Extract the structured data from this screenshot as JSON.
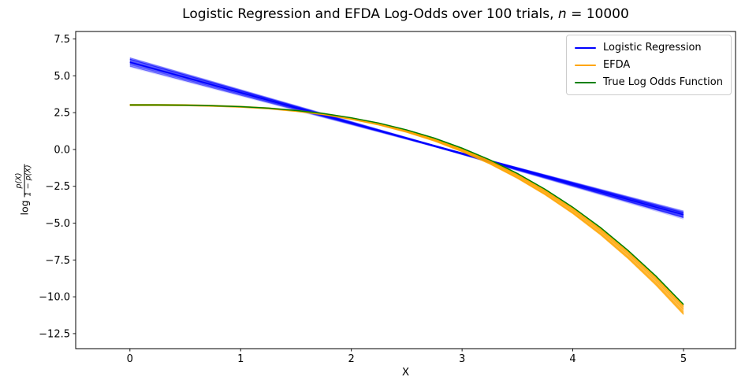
{
  "figure": {
    "title_prefix": "Logistic Regression and EFDA Log-Odds over 100 trials, ",
    "title_math_var": "n",
    "title_math_rest": " = 10000"
  },
  "chart_data": {
    "type": "line",
    "title": "Logistic Regression and EFDA Log-Odds over 100 trials, n = 10000",
    "trials": 100,
    "n": 10000,
    "xlabel": "X",
    "ylabel": "log p(X) / (1 − p(X))",
    "ylabel_parts": {
      "func": "log",
      "numerator": "p(X)",
      "denominator": "1 − p(X)"
    },
    "xlim": [
      -0.49,
      5.47
    ],
    "ylim": [
      -13.52,
      8.01
    ],
    "xticks": [
      0,
      1,
      2,
      3,
      4,
      5
    ],
    "yticks": [
      7.5,
      5.0,
      2.5,
      0.0,
      -2.5,
      -5.0,
      -7.5,
      -10.0,
      -12.5
    ],
    "grid": false,
    "legend_position": "upper right",
    "legend": [
      {
        "label": "Logistic Regression",
        "color": "#0000ff"
      },
      {
        "label": "EFDA",
        "color": "#ffa500"
      },
      {
        "label": "True Log Odds Function",
        "color": "#008000"
      }
    ],
    "series": [
      {
        "name": "Logistic Regression",
        "color": "#0000ff",
        "style": "ensemble of straight fits",
        "x": [
          0,
          5
        ],
        "y_mean": [
          5.93,
          -4.43
        ],
        "y_spread": [
          0.37,
          0.3
        ]
      },
      {
        "name": "EFDA",
        "color": "#ffa500",
        "style": "ensemble of curves",
        "x": [
          0,
          0.25,
          0.5,
          0.75,
          1,
          1.25,
          1.5,
          1.75,
          2,
          2.25,
          2.5,
          2.75,
          3,
          3.25,
          3.5,
          3.75,
          4,
          4.25,
          4.5,
          4.75,
          5
        ],
        "y_mean": [
          3.02,
          3.02,
          3.0,
          2.97,
          2.9,
          2.79,
          2.62,
          2.4,
          2.1,
          1.71,
          1.24,
          0.66,
          -0.03,
          -0.85,
          -1.8,
          -2.89,
          -4.14,
          -5.55,
          -7.14,
          -8.91,
          -10.87
        ]
      },
      {
        "name": "True Log Odds Function",
        "color": "#008000",
        "style": "solid",
        "x": [
          0,
          0.25,
          0.5,
          0.75,
          1,
          1.25,
          1.5,
          1.75,
          2,
          2.25,
          2.5,
          2.75,
          3,
          3.25,
          3.5,
          3.75,
          4,
          4.25,
          4.5,
          4.75,
          5
        ],
        "y": [
          3.02,
          3.02,
          3.01,
          2.97,
          2.91,
          2.81,
          2.65,
          2.44,
          2.15,
          1.79,
          1.33,
          0.77,
          0.09,
          -0.7,
          -1.63,
          -2.7,
          -3.92,
          -5.3,
          -6.86,
          -8.59,
          -10.52
        ]
      }
    ],
    "bands": {
      "logistic": {
        "pinch_x": 2.8,
        "pinch_y": 0.13,
        "slope_mean": -2.072,
        "slope_spread": 0.115,
        "pinch_jitter": 0.05
      },
      "efda": {
        "offset_at_x5_mean": -0.35,
        "offset_at_x5_spread": 0.37,
        "shape_power": 2,
        "near_zero_jitter": 0.05
      }
    }
  }
}
